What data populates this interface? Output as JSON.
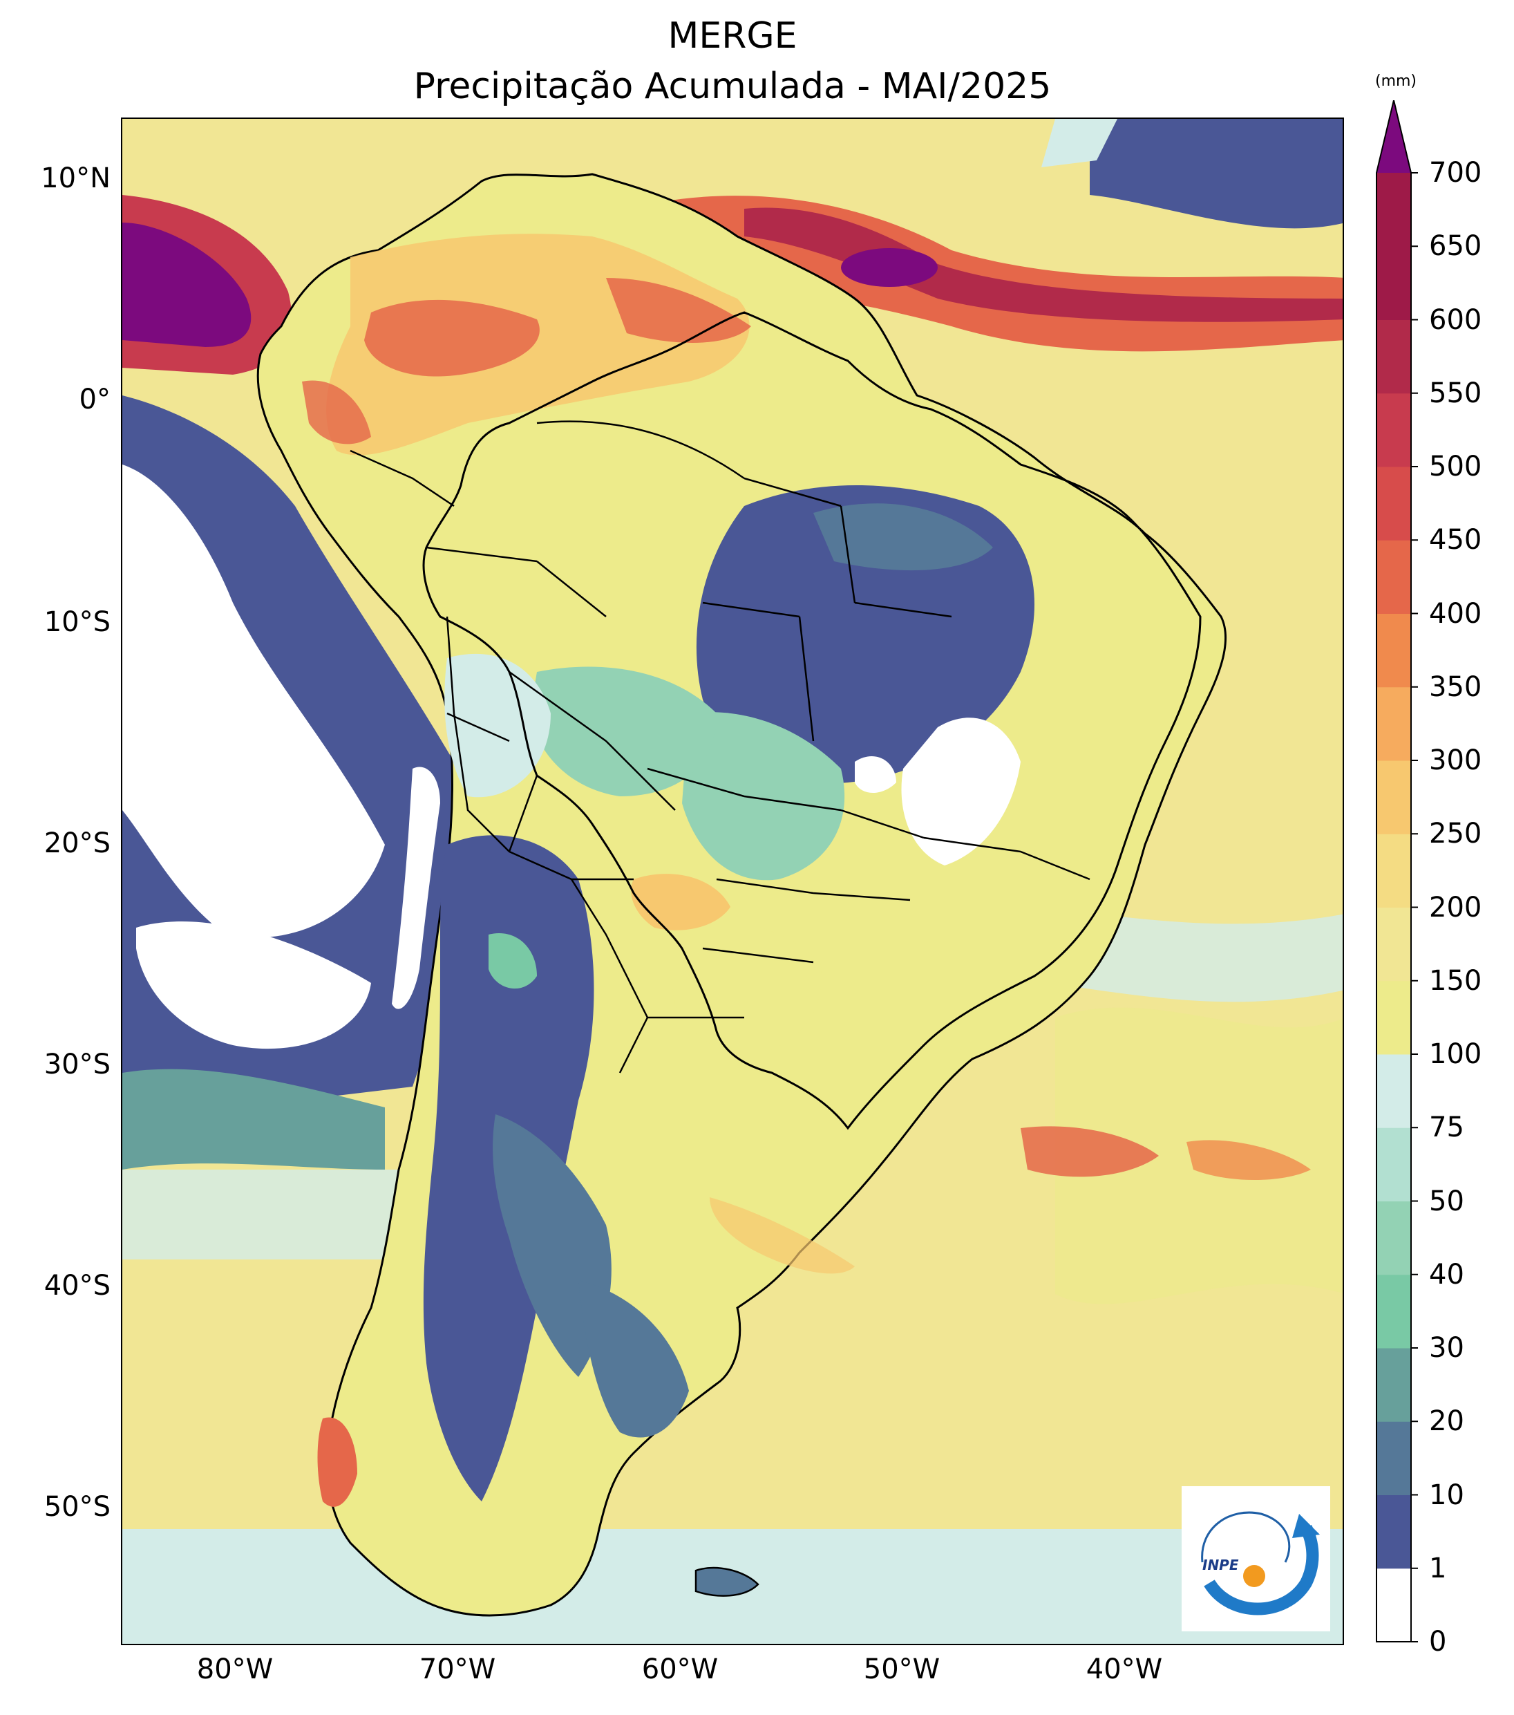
{
  "title": {
    "line1": "MERGE",
    "line2": "Precipitação Acumulada - MAI/2025"
  },
  "map": {
    "lon_range": [
      -85,
      -30
    ],
    "lat_range": [
      -56,
      13
    ],
    "lat_ticks": [
      "10°N",
      "0°",
      "10°S",
      "20°S",
      "30°S",
      "40°S",
      "50°S"
    ],
    "lon_ticks": [
      "80°W",
      "70°W",
      "60°W",
      "50°W",
      "40°W"
    ],
    "layers": [
      "precipitation-field",
      "coastlines",
      "country-borders",
      "brazil-state-borders"
    ]
  },
  "colorbar": {
    "unit": "(mm)",
    "levels": [
      "0",
      "1",
      "10",
      "20",
      "30",
      "40",
      "50",
      "75",
      "100",
      "150",
      "200",
      "250",
      "300",
      "350",
      "400",
      "450",
      "500",
      "550",
      "600",
      "650",
      "700"
    ],
    "colors": [
      "#ffffff",
      "#4a5796",
      "#557898",
      "#67a09b",
      "#79c9a5",
      "#93d2b4",
      "#b2e0d1",
      "#d3ece8",
      "#edeb8b",
      "#f1e694",
      "#f4dc83",
      "#f7c86f",
      "#f6ab5e",
      "#f08a4d",
      "#e5674a",
      "#d74c4b",
      "#c83b4e",
      "#b12a4a",
      "#9e1a48"
    ],
    "overflow_color": "#7c0a7e",
    "extend": "max"
  },
  "logo": {
    "text": "INPE"
  }
}
